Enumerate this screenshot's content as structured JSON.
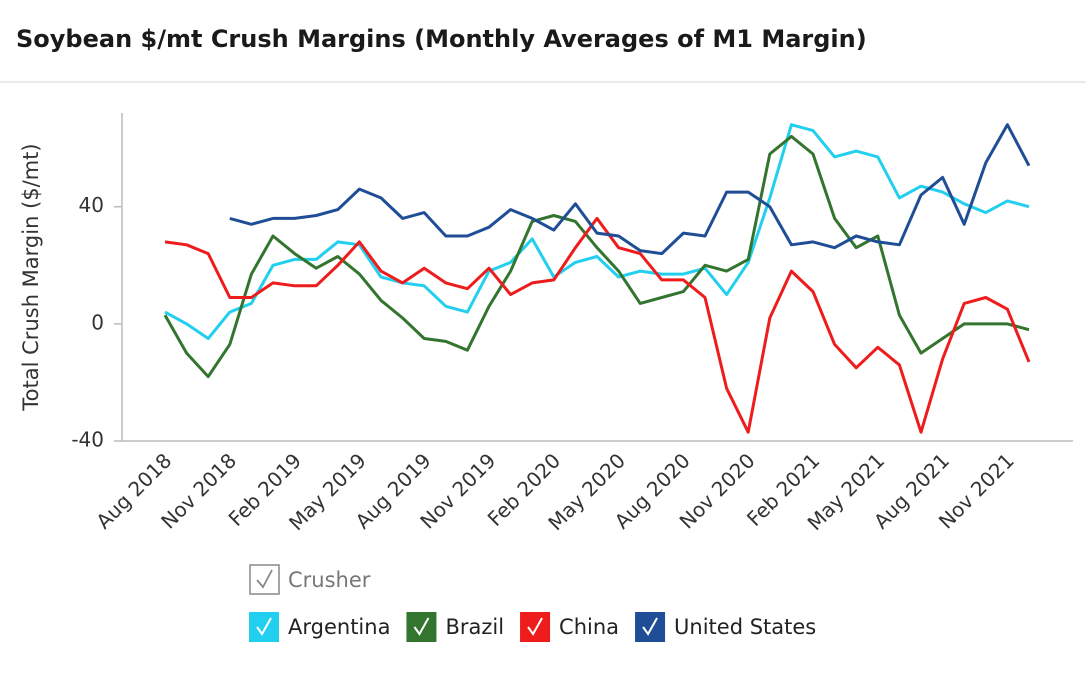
{
  "chart_data": {
    "type": "line",
    "title": "Soybean $/mt Crush Margins (Monthly Averages of M1 Margin)",
    "y_label": "Total Crush Margin ($/mt)",
    "legend_title": "Crusher",
    "categories": [
      "Aug 2018",
      null,
      null,
      "Nov 2018",
      null,
      null,
      "Feb 2019",
      null,
      null,
      "May 2019",
      null,
      null,
      "Aug 2019",
      null,
      null,
      "Nov 2019",
      null,
      null,
      "Feb 2020",
      null,
      null,
      "May 2020",
      null,
      null,
      "Aug 2020",
      null,
      null,
      "Nov 2020",
      null,
      null,
      "Feb 2021",
      null,
      null,
      "May 2021",
      null,
      null,
      "Aug 2021",
      null,
      null,
      "Nov 2021",
      null
    ],
    "ylim": [
      -40,
      72
    ],
    "yticks": [
      -40,
      0,
      40
    ],
    "grid": false,
    "series": [
      {
        "name": "Argentina",
        "color": "#22cfee",
        "values": [
          4,
          0,
          -5,
          4,
          7,
          20,
          22,
          22,
          28,
          27,
          16,
          14,
          13,
          6,
          4,
          18,
          21,
          29,
          16,
          21,
          23,
          16,
          18,
          17,
          17,
          19,
          10,
          21,
          43,
          68,
          66,
          57,
          59,
          57,
          43,
          47,
          45,
          41,
          38,
          42,
          40
        ]
      },
      {
        "name": "Brazil",
        "color": "#33752f",
        "values": [
          3,
          -10,
          -18,
          -7,
          17,
          30,
          24,
          19,
          23,
          17,
          8,
          2,
          -5,
          -6,
          -9,
          6,
          18,
          35,
          37,
          35,
          26,
          18,
          7,
          9,
          11,
          20,
          18,
          22,
          58,
          64,
          58,
          36,
          26,
          30,
          3,
          -10,
          -5,
          0,
          0,
          0,
          -2
        ]
      },
      {
        "name": "China",
        "color": "#ee1c1c",
        "values": [
          28,
          27,
          24,
          9,
          9,
          14,
          13,
          13,
          20,
          28,
          18,
          14,
          19,
          14,
          12,
          19,
          10,
          14,
          15,
          26,
          36,
          26,
          24,
          15,
          15,
          9,
          -22,
          -37,
          2,
          18,
          11,
          -7,
          -15,
          -8,
          -14,
          -37,
          -12,
          7,
          9,
          5,
          -13
        ]
      },
      {
        "name": "United States",
        "color": "#1f4e96",
        "values": [
          null,
          null,
          null,
          36,
          34,
          36,
          36,
          37,
          39,
          46,
          43,
          36,
          38,
          30,
          30,
          33,
          39,
          36,
          32,
          41,
          31,
          30,
          25,
          24,
          31,
          30,
          45,
          45,
          40,
          27,
          28,
          26,
          30,
          28,
          27,
          44,
          50,
          34,
          55,
          68,
          54
        ]
      }
    ]
  }
}
